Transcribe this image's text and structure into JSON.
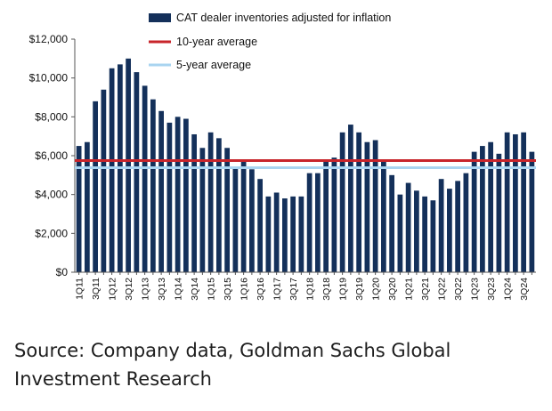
{
  "chart_data": {
    "type": "bar",
    "title": "",
    "xlabel": "",
    "ylabel": "",
    "ylim": [
      0,
      12000
    ],
    "yticks": [
      "$0",
      "$2,000",
      "$4,000",
      "$6,000",
      "$8,000",
      "$10,000",
      "$12,000"
    ],
    "x_tick_labels": [
      "1Q11",
      "3Q11",
      "1Q12",
      "3Q12",
      "1Q13",
      "3Q13",
      "1Q14",
      "3Q14",
      "1Q15",
      "3Q15",
      "1Q16",
      "3Q16",
      "1Q17",
      "3Q17",
      "1Q18",
      "3Q18",
      "1Q19",
      "3Q19",
      "1Q20",
      "3Q20",
      "1Q21",
      "3Q21",
      "1Q22",
      "3Q22",
      "1Q23",
      "3Q23",
      "1Q24",
      "3Q24"
    ],
    "categories": [
      "1Q11",
      "2Q11",
      "3Q11",
      "4Q11",
      "1Q12",
      "2Q12",
      "3Q12",
      "4Q12",
      "1Q13",
      "2Q13",
      "3Q13",
      "4Q13",
      "1Q14",
      "2Q14",
      "3Q14",
      "4Q14",
      "1Q15",
      "2Q15",
      "3Q15",
      "4Q15",
      "1Q16",
      "2Q16",
      "3Q16",
      "4Q16",
      "1Q17",
      "2Q17",
      "3Q17",
      "4Q17",
      "1Q18",
      "2Q18",
      "3Q18",
      "4Q18",
      "1Q19",
      "2Q19",
      "3Q19",
      "4Q19",
      "1Q20",
      "2Q20",
      "3Q20",
      "4Q20",
      "1Q21",
      "2Q21",
      "3Q21",
      "4Q21",
      "1Q22",
      "2Q22",
      "3Q22",
      "4Q22",
      "1Q23",
      "2Q23",
      "3Q23",
      "4Q23",
      "1Q24",
      "2Q24",
      "3Q24",
      "4Q24"
    ],
    "series": [
      {
        "name": "CAT dealer inventories adjusted for inflation",
        "color": "#14305a",
        "values": [
          6500,
          6700,
          8800,
          9400,
          10500,
          10700,
          11000,
          10300,
          9600,
          8900,
          8300,
          7700,
          8000,
          7900,
          7100,
          6400,
          7200,
          6900,
          6400,
          5400,
          5800,
          5300,
          4800,
          3900,
          4100,
          3800,
          3900,
          3900,
          5100,
          5100,
          5800,
          5900,
          7200,
          7600,
          7200,
          6700,
          6800,
          5700,
          5000,
          4000,
          4600,
          4200,
          3900,
          3700,
          4800,
          4300,
          4700,
          5100,
          6200,
          6500,
          6700,
          6100,
          7200,
          7100,
          7200,
          6200
        ]
      }
    ],
    "reference_lines": [
      {
        "name": "10-year average",
        "value": 5750,
        "color": "#c8252b"
      },
      {
        "name": "5-year average",
        "value": 5380,
        "color": "#a9d4f0"
      }
    ],
    "legend_placement": "top",
    "grid": false
  },
  "source_text": "Source: Company data, Goldman Sachs Global Investment Research"
}
